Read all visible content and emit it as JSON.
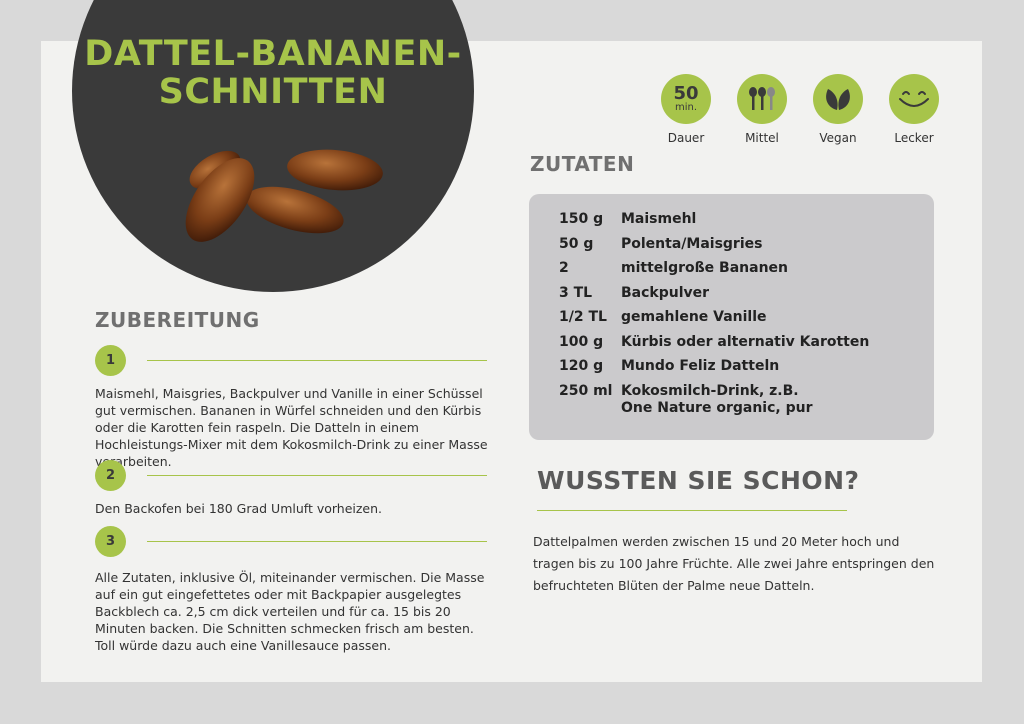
{
  "title": [
    "DATTEL-BANANEN-",
    "SCHNITTEN"
  ],
  "colors": {
    "accent": "#a7c44a",
    "dark": "#3a3a3a",
    "heading": "#707070",
    "box": "#cbcacc"
  },
  "badges": [
    {
      "value": "50",
      "unit": "min.",
      "label": "Dauer"
    },
    {
      "icon": "spoons-icon",
      "label": "Mittel",
      "difficulty": "2 of 3"
    },
    {
      "icon": "leaves-icon",
      "label": "Vegan"
    },
    {
      "icon": "smile-icon",
      "label": "Lecker"
    }
  ],
  "ingredients_heading": "ZUTATEN",
  "ingredients": [
    {
      "q": "150 g",
      "name": "Maismehl"
    },
    {
      "q": "50 g",
      "name": "Polenta/Maisgries"
    },
    {
      "q": "2",
      "name": "mittelgroße Bananen"
    },
    {
      "q": "3 TL",
      "name": "Backpulver"
    },
    {
      "q": "1/2 TL",
      "name": "gemahlene Vanille"
    },
    {
      "q": "100 g",
      "name": "Kürbis oder alternativ Karotten"
    },
    {
      "q": "120 g",
      "name": "Mundo Feliz Datteln"
    },
    {
      "q": "250 ml",
      "name": "Kokosmilch-Drink, z.B.",
      "name2": "One Nature organic, pur"
    }
  ],
  "prep_heading": "ZUBEREITUNG",
  "steps": [
    {
      "n": "1",
      "text": "Maismehl, Maisgries, Backpulver und Vanille in einer Schüssel gut vermischen. Bananen in Würfel schneiden und den Kürbis oder die Karotten fein raspeln. Die Datteln in einem Hochleistungs-Mixer mit dem Kokosmilch-Drink zu einer Masse verarbeiten."
    },
    {
      "n": "2",
      "text": "Den Backofen bei 180 Grad Umluft vorheizen."
    },
    {
      "n": "3",
      "text": "Alle Zutaten, inklusive Öl, miteinander vermischen. Die Masse auf ein gut eingefettetes oder mit Backpapier ausgelegtes Backblech ca. 2,5 cm dick verteilen und für ca. 15 bis 20 Minuten backen. Die Schnitten schmecken frisch am besten. Toll würde dazu auch eine Vanillesauce passen."
    }
  ],
  "fact_heading": "WUSSTEN SIE SCHON?",
  "fact_text": "Dattelpalmen werden zwischen 15 und 20 Meter hoch und tragen bis zu 100 Jahre Früchte. Alle zwei Jahre entspringen den befruchteten Blüten der Palme neue Datteln."
}
